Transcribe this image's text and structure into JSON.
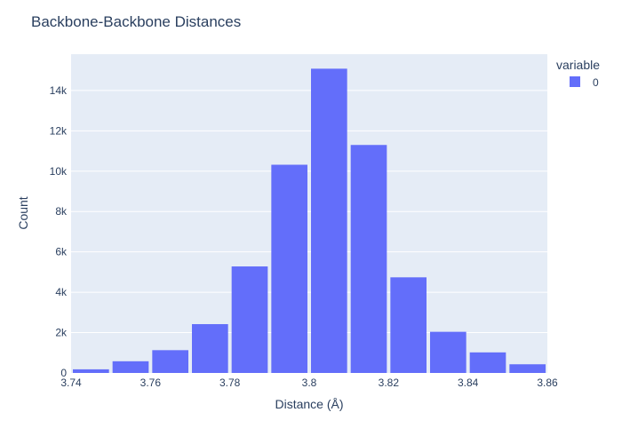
{
  "chart_data": {
    "type": "bar",
    "title": "Backbone-Backbone Distances",
    "xlabel": "Distance (Å)",
    "ylabel": "Count",
    "xlim": [
      3.74,
      3.86
    ],
    "ylim": [
      0,
      15800
    ],
    "bin_width": 0.01,
    "x": [
      3.745,
      3.755,
      3.765,
      3.775,
      3.785,
      3.795,
      3.805,
      3.815,
      3.825,
      3.835,
      3.845,
      3.855
    ],
    "series": [
      {
        "name": "0",
        "values": [
          180,
          580,
          1130,
          2420,
          5280,
          10320,
          15080,
          11300,
          4740,
          2040,
          1020,
          430
        ]
      }
    ],
    "x_ticks": [
      {
        "value": 3.74,
        "label": "3.74"
      },
      {
        "value": 3.76,
        "label": "3.76"
      },
      {
        "value": 3.78,
        "label": "3.78"
      },
      {
        "value": 3.8,
        "label": "3.8"
      },
      {
        "value": 3.82,
        "label": "3.82"
      },
      {
        "value": 3.84,
        "label": "3.84"
      },
      {
        "value": 3.86,
        "label": "3.86"
      }
    ],
    "y_ticks": [
      {
        "value": 0,
        "label": "0"
      },
      {
        "value": 2000,
        "label": "2k"
      },
      {
        "value": 4000,
        "label": "4k"
      },
      {
        "value": 6000,
        "label": "6k"
      },
      {
        "value": 8000,
        "label": "8k"
      },
      {
        "value": 10000,
        "label": "10k"
      },
      {
        "value": 12000,
        "label": "12k"
      },
      {
        "value": 14000,
        "label": "14k"
      }
    ],
    "legend": {
      "title": "variable",
      "placement": "top-right"
    },
    "grid": true,
    "colors": {
      "bar": "#636efa",
      "plot_bg": "#e5ecf6",
      "grid": "#ffffff",
      "text": "#2a3f5f"
    }
  }
}
